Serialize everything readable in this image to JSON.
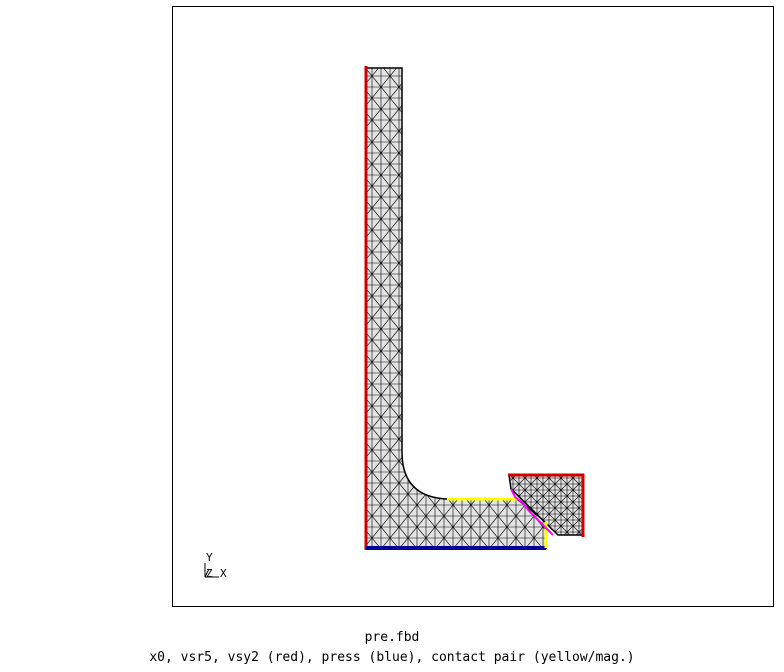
{
  "window": {
    "file_name": "pre.fbd",
    "legend_text": "x0, vsr5, vsy2 (red), press (blue), contact pair (yellow/mag.)"
  },
  "axes": {
    "y_label": "Y",
    "z_label": "Z",
    "x_label": "X"
  },
  "colors": {
    "mesh_fill": "#e4e4e4",
    "mesh_lines": "#000000",
    "boundary_red": "#cc0000",
    "boundary_blue": "#000099",
    "contact_yellow": "#ffff00",
    "contact_magenta": "#ff00ff"
  }
}
